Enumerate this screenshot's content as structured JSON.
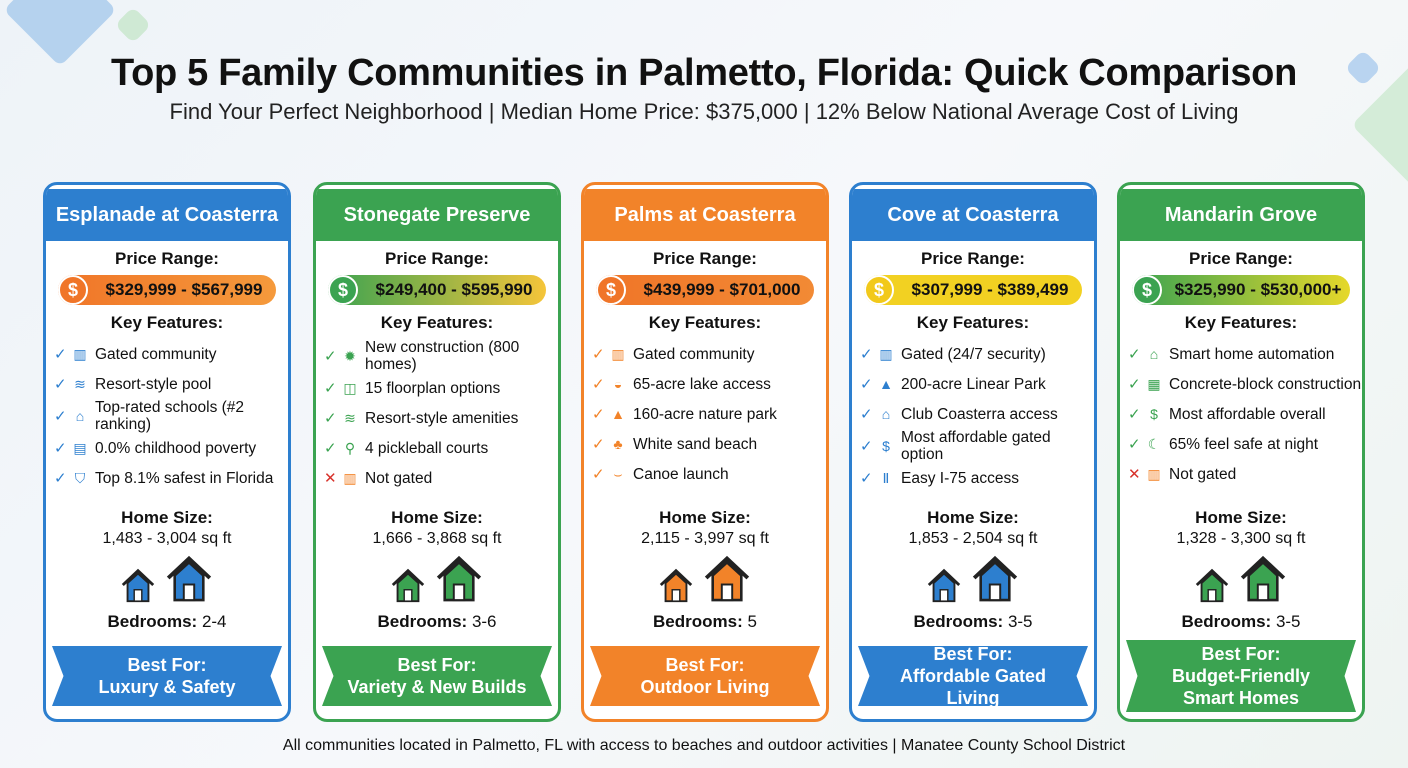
{
  "title": "Top 5 Family Communities in Palmetto, Florida: Quick Comparison",
  "subtitle": "Find Your Perfect Neighborhood | Median Home Price: $375,000 | 12% Below National Average Cost of Living",
  "labels": {
    "price": "Price Range:",
    "features": "Key Features:",
    "size": "Home Size:",
    "bedrooms": "Bedrooms:",
    "best_for": "Best For:"
  },
  "footer": "All communities located in Palmetto, FL with access to beaches and outdoor activities | Manatee County School District",
  "colors": {
    "blue": "#2d7fcf",
    "green": "#3ba351",
    "orange": "#f28329",
    "yellow": "#f2d122"
  },
  "communities": [
    {
      "name": "Esplanade at Coasterra",
      "color": "#2d7fcf",
      "price": "$329,999 - $567,999",
      "pill": [
        "#f07528",
        "#f59a3c"
      ],
      "coin": "#f07528",
      "features": [
        {
          "ok": true,
          "icon": "gate-icon",
          "text": "Gated community"
        },
        {
          "ok": true,
          "icon": "pool-icon",
          "text": "Resort-style pool"
        },
        {
          "ok": true,
          "icon": "school-icon",
          "text": "Top-rated schools (#2 ranking)"
        },
        {
          "ok": true,
          "icon": "chart-icon",
          "text": "0.0% childhood poverty"
        },
        {
          "ok": true,
          "icon": "shield-icon",
          "text": "Top 8.1% safest in Florida"
        }
      ],
      "size": "1,483 - 3,004 sq ft",
      "bedrooms": "2-4",
      "best_for": "Luxury & Safety"
    },
    {
      "name": "Stonegate Preserve",
      "color": "#3ba351",
      "price": "$249,400 - $595,990",
      "pill": [
        "#3ba351",
        "#f5c53a"
      ],
      "coin": "#3ba351",
      "features": [
        {
          "ok": true,
          "icon": "new-badge-icon",
          "text": "New construction (800 homes)"
        },
        {
          "ok": true,
          "icon": "floorplan-icon",
          "text": "15 floorplan options"
        },
        {
          "ok": true,
          "icon": "pool-icon",
          "text": "Resort-style amenities"
        },
        {
          "ok": true,
          "icon": "pickleball-icon",
          "text": "4 pickleball courts"
        },
        {
          "ok": false,
          "icon": "gate-icon",
          "text": "Not gated"
        }
      ],
      "size": "1,666 - 3,868 sq ft",
      "bedrooms": "3-6",
      "best_for": "Variety & New Builds"
    },
    {
      "name": "Palms at Coasterra",
      "color": "#f28329",
      "price": "$439,999 - $701,000",
      "pill": [
        "#f07528",
        "#f28a35"
      ],
      "coin": "#f07528",
      "features": [
        {
          "ok": true,
          "icon": "gate-icon",
          "text": "Gated community"
        },
        {
          "ok": true,
          "icon": "lake-icon",
          "text": "65-acre lake access"
        },
        {
          "ok": true,
          "icon": "park-icon",
          "text": "160-acre nature park"
        },
        {
          "ok": true,
          "icon": "palm-tree-icon",
          "text": "White sand beach"
        },
        {
          "ok": true,
          "icon": "canoe-icon",
          "text": "Canoe launch"
        }
      ],
      "size": "2,115 - 3,997 sq ft",
      "bedrooms": "5",
      "best_for": "Outdoor Living"
    },
    {
      "name": "Cove at Coasterra",
      "color": "#2d7fcf",
      "price": "$307,999 - $389,499",
      "pill": [
        "#f2d122",
        "#f2d122"
      ],
      "coin": "#f2c91a",
      "features": [
        {
          "ok": true,
          "icon": "gate-icon",
          "text": "Gated (24/7 security)"
        },
        {
          "ok": true,
          "icon": "park-icon",
          "text": "200-acre Linear Park"
        },
        {
          "ok": true,
          "icon": "clubhouse-icon",
          "text": "Club Coasterra access"
        },
        {
          "ok": true,
          "icon": "dollar-icon",
          "text": "Most affordable gated option"
        },
        {
          "ok": true,
          "icon": "highway-icon",
          "text": "Easy I-75 access"
        }
      ],
      "size": "1,853 - 2,504 sq ft",
      "bedrooms": "3-5",
      "best_for": "Affordable Gated Living"
    },
    {
      "name": "Mandarin Grove",
      "color": "#3ba351",
      "price": "$325,990 - $530,000+",
      "pill": [
        "#3ba351",
        "#e6d82a"
      ],
      "coin": "#3ba351",
      "features": [
        {
          "ok": true,
          "icon": "smart-home-icon",
          "text": "Smart home automation"
        },
        {
          "ok": true,
          "icon": "brick-icon",
          "text": "Concrete-block construction"
        },
        {
          "ok": true,
          "icon": "dollar-icon",
          "text": "Most affordable overall"
        },
        {
          "ok": true,
          "icon": "moon-icon",
          "text": "65% feel safe at night"
        },
        {
          "ok": false,
          "icon": "gate-icon",
          "text": "Not gated"
        }
      ],
      "size": "1,328 - 3,300 sq ft",
      "bedrooms": "3-5",
      "best_for": "Budget-Friendly Smart Homes"
    }
  ]
}
